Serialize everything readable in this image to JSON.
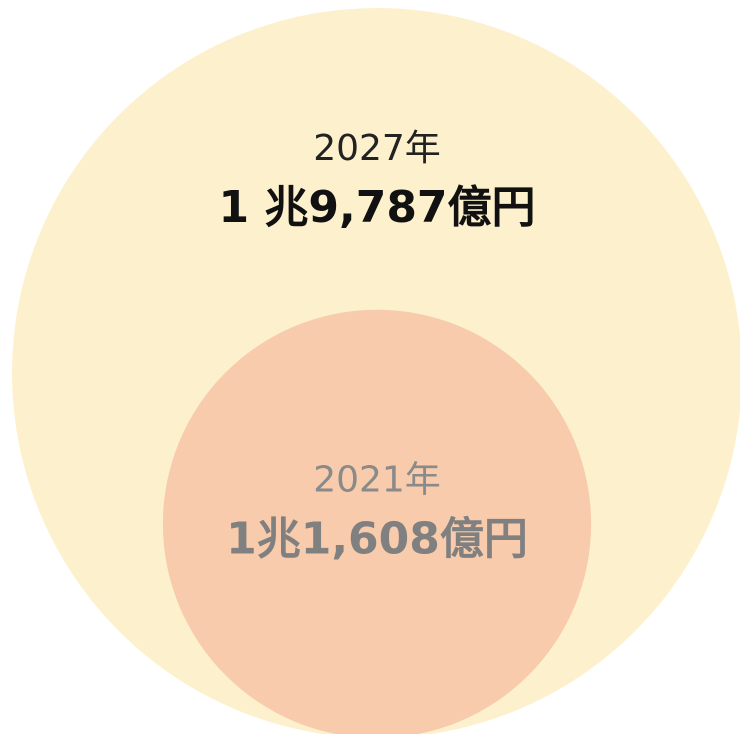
{
  "chart_data": {
    "type": "bubble",
    "categories": [
      "2027年",
      "2021年"
    ],
    "values": [
      19787,
      11608
    ],
    "value_labels": [
      "1 兆9,787億円",
      "1兆1,608億円"
    ],
    "colors": [
      "#fdf0cc",
      "#f7cbab"
    ]
  }
}
